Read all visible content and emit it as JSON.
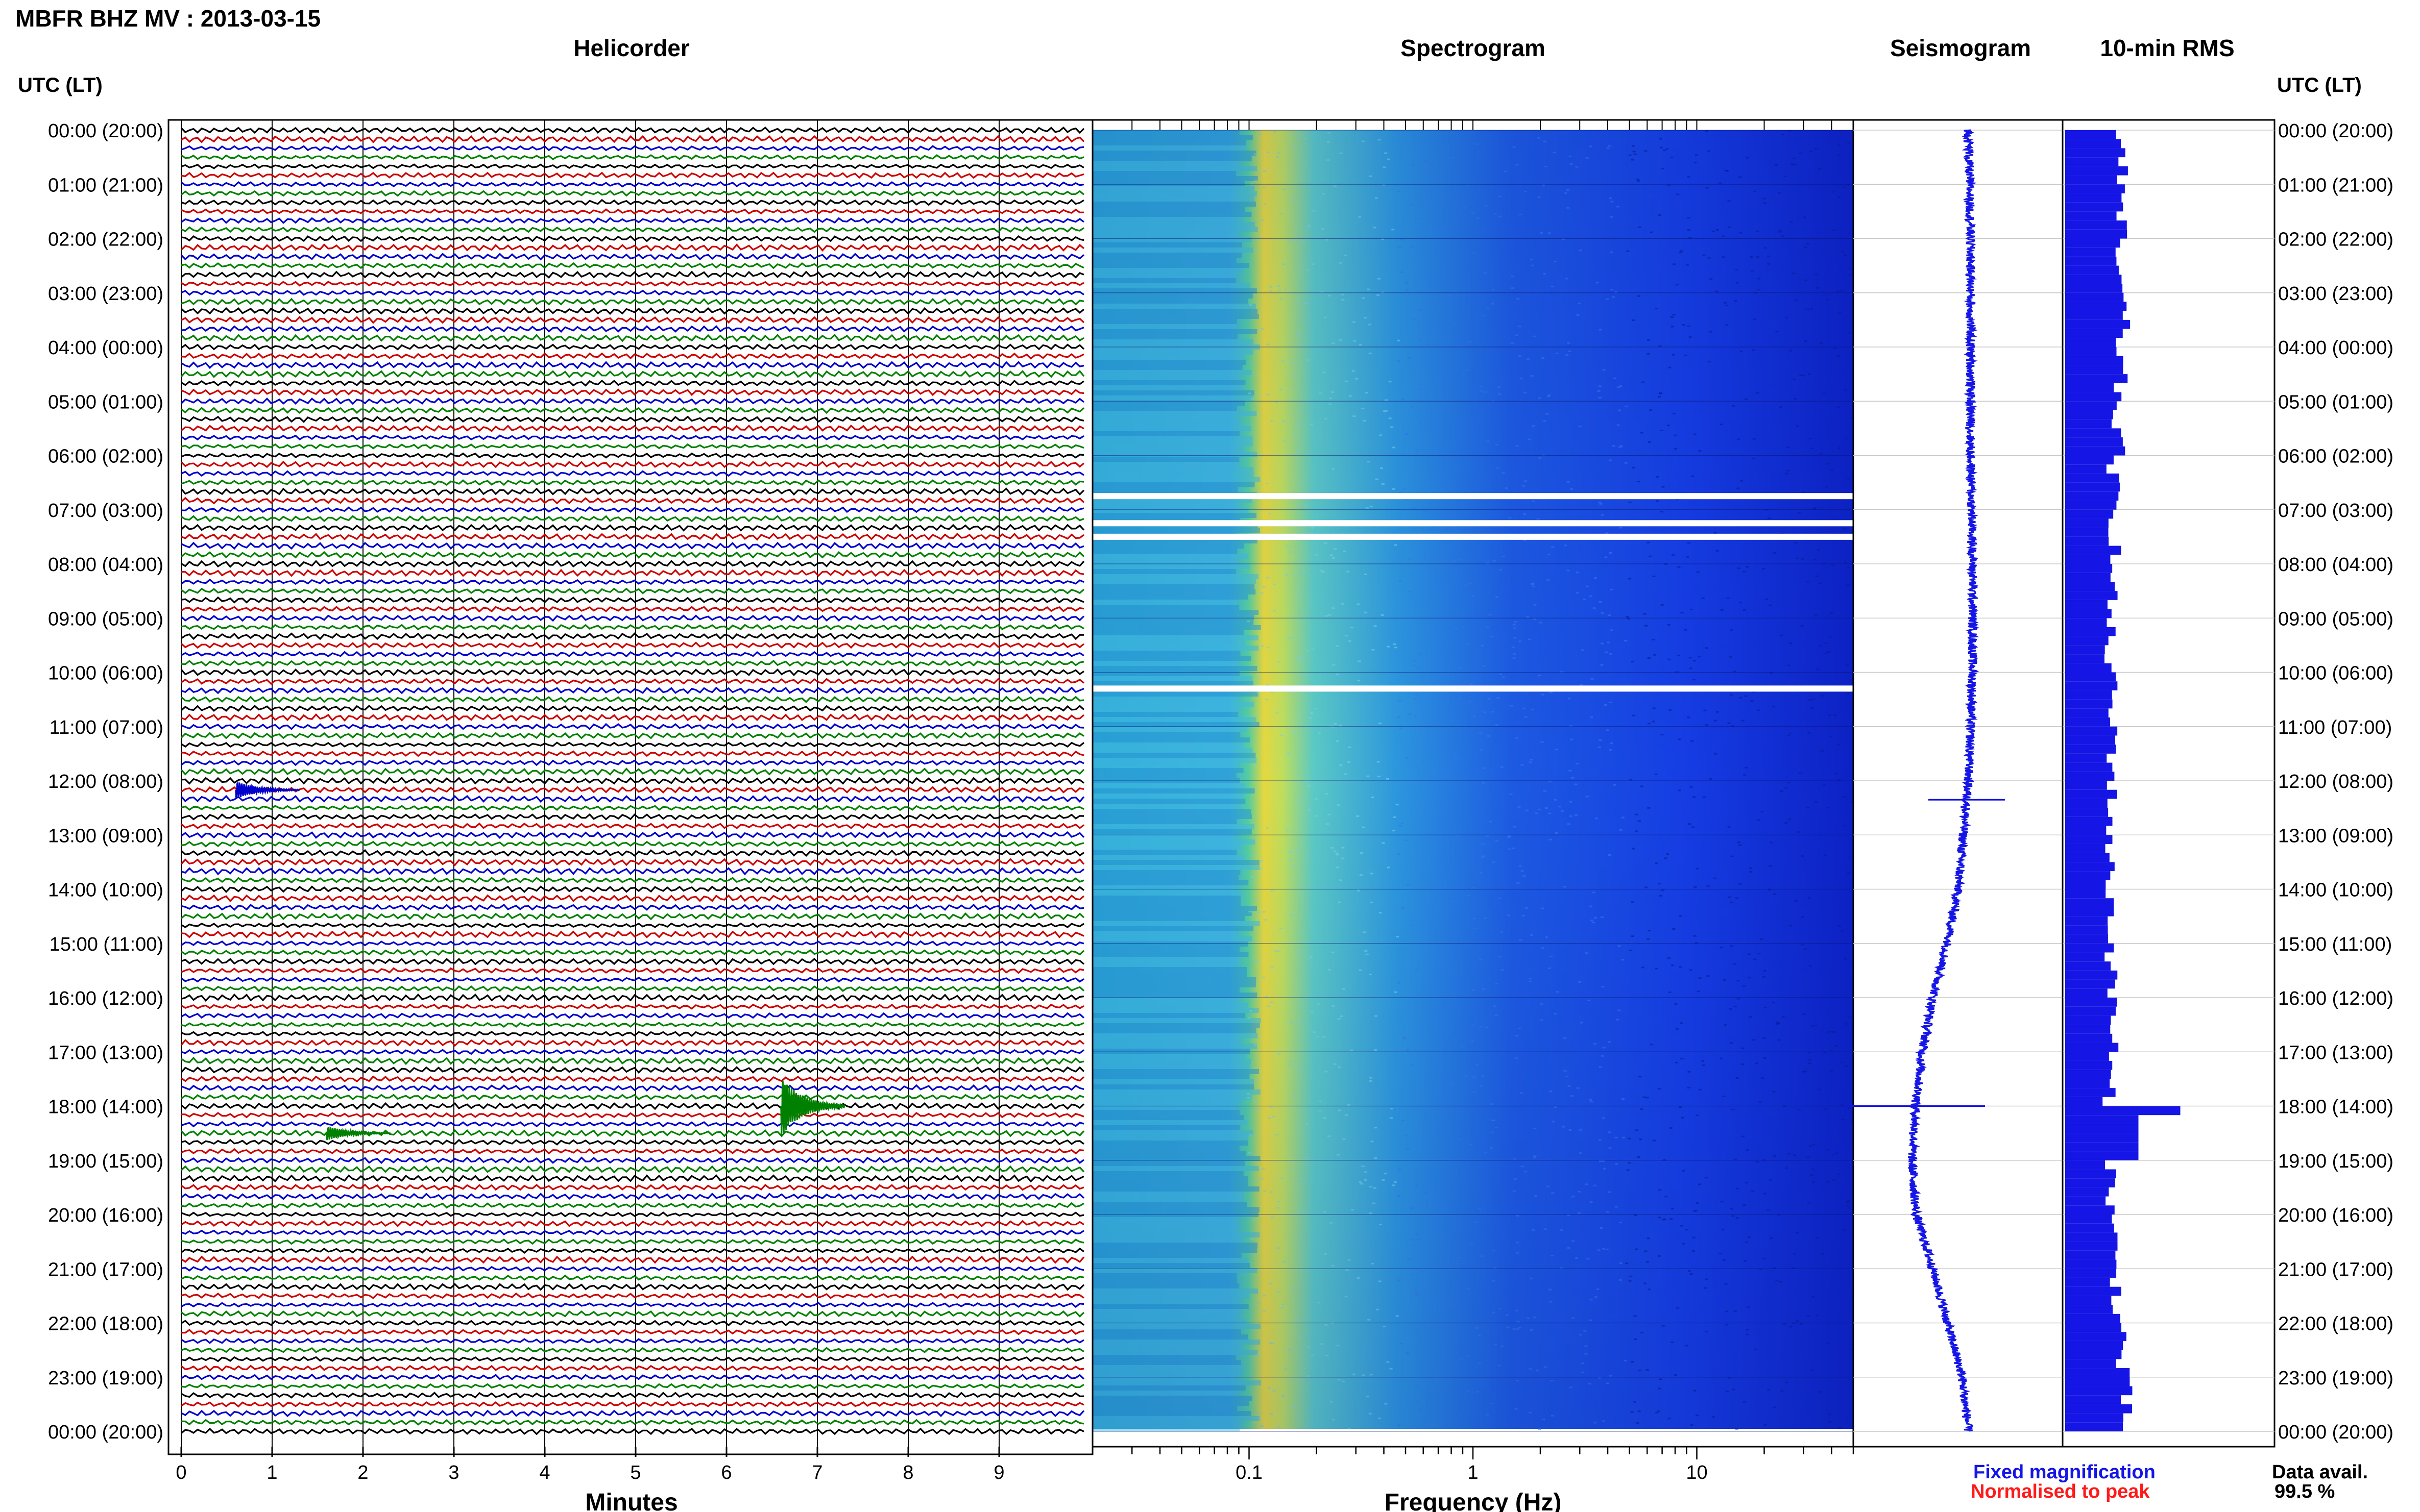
{
  "header": {
    "title": "MBFR BHZ MV : 2013-03-15"
  },
  "panels": {
    "helicorder_title": "Helicorder",
    "spectrogram_title": "Spectrogram",
    "seismogram_title": "Seismogram",
    "rms_title": "10-min RMS"
  },
  "axes": {
    "left_header": "UTC (LT)",
    "right_header": "UTC (LT)",
    "helicorder_xlabel": "Minutes",
    "spectrogram_xlabel": "Frequency (Hz)"
  },
  "time_labels": [
    "00:00 (20:00)",
    "01:00 (21:00)",
    "02:00 (22:00)",
    "03:00 (23:00)",
    "04:00 (00:00)",
    "05:00 (01:00)",
    "06:00 (02:00)",
    "07:00 (03:00)",
    "08:00 (04:00)",
    "09:00 (05:00)",
    "10:00 (06:00)",
    "11:00 (07:00)",
    "12:00 (08:00)",
    "13:00 (09:00)",
    "14:00 (10:00)",
    "15:00 (11:00)",
    "16:00 (12:00)",
    "17:00 (13:00)",
    "18:00 (14:00)",
    "19:00 (15:00)",
    "20:00 (16:00)",
    "21:00 (17:00)",
    "22:00 (18:00)",
    "23:00 (19:00)",
    "00:00 (20:00)"
  ],
  "minute_ticks": [
    "0",
    "1",
    "2",
    "3",
    "4",
    "5",
    "6",
    "7",
    "8",
    "9"
  ],
  "freq_ticks": [
    "0.1",
    "1",
    "10"
  ],
  "legend": {
    "fixed": "Fixed magnification",
    "fixed_color": "#1515e6",
    "normalised": "Normalised to peak",
    "normalised_color": "#ff1a1a",
    "avail_label": "Data avail.",
    "avail_value": "99.5 %"
  },
  "trace_colors": [
    "#000000",
    "#cc0000",
    "#0000cc",
    "#008000"
  ],
  "chart_data": [
    {
      "type": "line",
      "name": "helicorder",
      "title": "Helicorder",
      "xlabel": "Minutes",
      "xlim": [
        0,
        10
      ],
      "rows_per_hour": 6,
      "hours": 24,
      "events": [
        {
          "hour": 18.0,
          "minute": 6.6,
          "amplitude": 5.0,
          "color": "#008000"
        },
        {
          "hour": 12.17,
          "minute": 0.6,
          "amplitude": 1.5,
          "color": "#0000cc"
        },
        {
          "hour": 18.5,
          "minute": 1.6,
          "amplitude": 1.2,
          "color": "#008000"
        }
      ]
    },
    {
      "type": "heatmap",
      "name": "spectrogram",
      "title": "Spectrogram",
      "xlabel": "Frequency (Hz)",
      "xscale": "log",
      "xlim": [
        0.02,
        50
      ],
      "peak_band_hz": [
        0.13,
        0.2
      ],
      "gaps_hours": [
        6.75,
        7.25,
        7.5,
        10.3
      ]
    },
    {
      "type": "line",
      "name": "seismogram",
      "title": "Seismogram",
      "hours": [
        0,
        2,
        4,
        6,
        8,
        10,
        12,
        14,
        15,
        16,
        17,
        18,
        19,
        20,
        21,
        22,
        23,
        24
      ],
      "offset": [
        0.55,
        0.56,
        0.56,
        0.56,
        0.57,
        0.57,
        0.55,
        0.5,
        0.45,
        0.38,
        0.33,
        0.3,
        0.28,
        0.3,
        0.38,
        0.45,
        0.52,
        0.55
      ]
    },
    {
      "type": "bar",
      "name": "rms",
      "title": "10-min RMS",
      "hours": [
        0,
        1,
        2,
        3,
        4,
        5,
        6,
        7,
        8,
        9,
        10,
        11,
        12,
        13,
        14,
        15,
        16,
        17,
        18,
        19,
        20,
        21,
        22,
        23
      ],
      "values": [
        0.28,
        0.26,
        0.25,
        0.27,
        0.26,
        0.25,
        0.23,
        0.24,
        0.22,
        0.21,
        0.22,
        0.23,
        0.22,
        0.21,
        0.22,
        0.22,
        0.23,
        0.21,
        0.55,
        0.22,
        0.23,
        0.25,
        0.27,
        0.28
      ],
      "xlim": [
        0,
        1
      ]
    }
  ]
}
